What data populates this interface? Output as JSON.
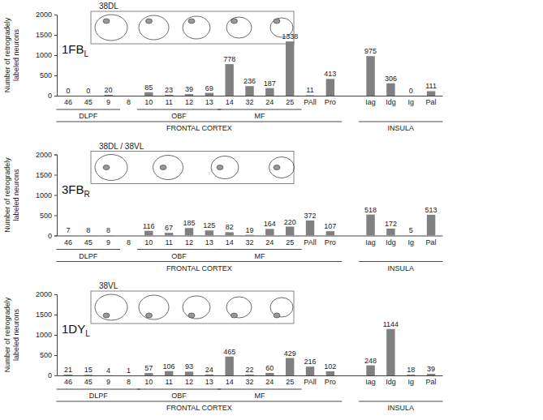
{
  "chart_data": [
    {
      "type": "bar",
      "title": "1FBL",
      "annotations": [
        "38DL"
      ],
      "y_label": "Number of retrogradely labeled neurons",
      "categories": [
        "46",
        "45",
        "9",
        "8",
        "10",
        "11",
        "12",
        "13",
        "14",
        "32",
        "24",
        "25",
        "PAll",
        "Pro",
        null,
        "Iag",
        "Idg",
        "Ig",
        "Pal"
      ],
      "values": [
        0,
        0,
        20,
        null,
        85,
        23,
        39,
        69,
        778,
        236,
        187,
        1338,
        11,
        413,
        null,
        975,
        306,
        0,
        111
      ],
      "color": "#808080",
      "ylim": [
        0,
        2000
      ],
      "yticks": [
        0,
        500,
        1000,
        1500,
        2000
      ],
      "grid": false,
      "data_labels": true,
      "groups": [
        {
          "label": "DLPF",
          "categories": [
            "46",
            "9"
          ]
        },
        {
          "label": "OBF",
          "categories": [
            "10",
            "13"
          ]
        },
        {
          "label": "MF",
          "categories": [
            "14",
            "25"
          ]
        }
      ],
      "super_groups": [
        {
          "label": "FRONTAL CORTEX",
          "categories": [
            "46",
            "Pro"
          ]
        },
        {
          "label": "INSULA",
          "categories": [
            "Iag",
            "Pal"
          ]
        }
      ]
    },
    {
      "type": "bar",
      "title": "3FBR",
      "annotations": [
        "38DL / 38VL"
      ],
      "y_label": "Number of retrogradely labeled neurons",
      "categories": [
        "46",
        "45",
        "9",
        "8",
        "10",
        "11",
        "12",
        "13",
        "14",
        "32",
        "24",
        "25",
        "PAll",
        "Pro",
        null,
        "Iag",
        "Idg",
        "Ig",
        "Pal"
      ],
      "values": [
        7,
        8,
        8,
        null,
        116,
        67,
        185,
        125,
        82,
        19,
        164,
        220,
        372,
        107,
        null,
        518,
        172,
        5,
        513
      ],
      "color": "#808080",
      "ylim": [
        0,
        2000
      ],
      "yticks": [
        0,
        500,
        1000,
        1500,
        2000
      ],
      "grid": false,
      "data_labels": true,
      "groups": [
        {
          "label": "DLPF",
          "categories": [
            "46",
            "9"
          ]
        },
        {
          "label": "OBF",
          "categories": [
            "10",
            "13"
          ]
        },
        {
          "label": "MF",
          "categories": [
            "14",
            "25"
          ]
        }
      ],
      "super_groups": [
        {
          "label": "FRONTAL CORTEX",
          "categories": [
            "46",
            "Pro"
          ]
        },
        {
          "label": "INSULA",
          "categories": [
            "Iag",
            "Pal"
          ]
        }
      ]
    },
    {
      "type": "bar",
      "title": "1DYL",
      "annotations": [
        "38VL"
      ],
      "y_label": "Number of retrogradely labeled neurons",
      "categories": [
        "46",
        "45",
        "9",
        "8",
        "10",
        "11",
        "12",
        "13",
        "14",
        "32",
        "24",
        "25",
        "PAll",
        "Pro",
        null,
        "Iag",
        "Idg",
        "Ig",
        "Pal"
      ],
      "values": [
        21,
        15,
        4,
        1,
        57,
        106,
        93,
        24,
        465,
        22,
        60,
        429,
        216,
        102,
        null,
        248,
        1144,
        18,
        39
      ],
      "color": "#808080",
      "ylim": [
        0,
        2000
      ],
      "yticks": [
        0,
        500,
        1000,
        1500,
        2000
      ],
      "grid": false,
      "data_labels": true,
      "groups": [
        {
          "label": "DLPF",
          "categories": [
            "46",
            "8"
          ]
        },
        {
          "label": "OBF",
          "categories": [
            "10",
            "13"
          ]
        },
        {
          "label": "MF",
          "categories": [
            "14",
            "25"
          ]
        }
      ],
      "super_groups": [
        {
          "label": "FRONTAL CORTEX",
          "categories": [
            "46",
            "Pro"
          ]
        },
        {
          "label": "INSULA",
          "categories": [
            "Iag",
            "Pal"
          ]
        }
      ]
    }
  ]
}
